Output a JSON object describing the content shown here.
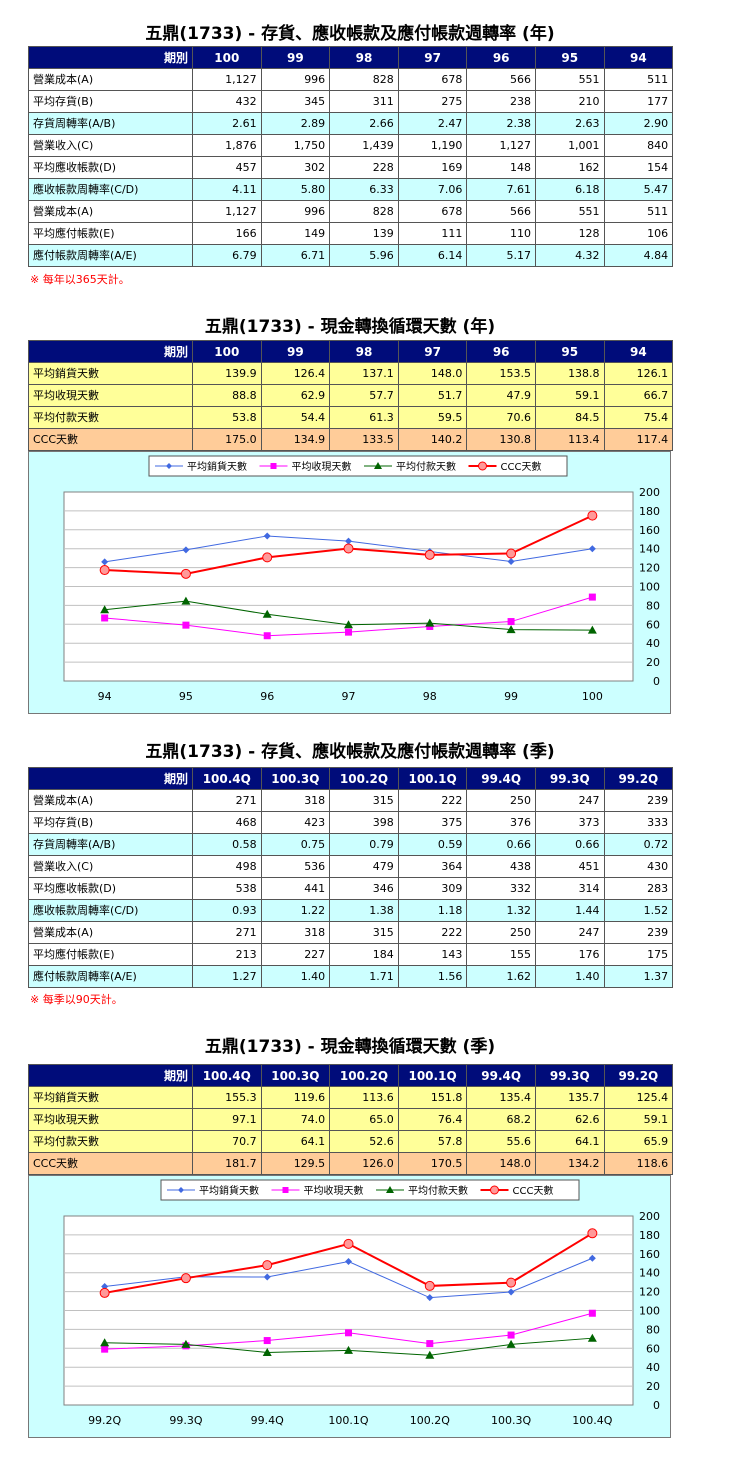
{
  "sections": {
    "annual_turnover": {
      "title": "五鼎(1733) -  存貨、應收帳款及應付帳款週轉率 (年)",
      "header_label": "期別",
      "periods": [
        "100",
        "99",
        "98",
        "97",
        "96",
        "95",
        "94"
      ],
      "rows": [
        {
          "label": "營業成本(A)",
          "values": [
            "1,127",
            "996",
            "828",
            "678",
            "566",
            "551",
            "511"
          ],
          "style": "white"
        },
        {
          "label": "平均存貨(B)",
          "values": [
            "432",
            "345",
            "311",
            "275",
            "238",
            "210",
            "177"
          ],
          "style": "white"
        },
        {
          "label": "存貨周轉率(A/B)",
          "values": [
            "2.61",
            "2.89",
            "2.66",
            "2.47",
            "2.38",
            "2.63",
            "2.90"
          ],
          "style": "cyan"
        },
        {
          "label": "營業收入(C)",
          "values": [
            "1,876",
            "1,750",
            "1,439",
            "1,190",
            "1,127",
            "1,001",
            "840"
          ],
          "style": "white"
        },
        {
          "label": "平均應收帳款(D)",
          "values": [
            "457",
            "302",
            "228",
            "169",
            "148",
            "162",
            "154"
          ],
          "style": "white"
        },
        {
          "label": "應收帳款周轉率(C/D)",
          "values": [
            "4.11",
            "5.80",
            "6.33",
            "7.06",
            "7.61",
            "6.18",
            "5.47"
          ],
          "style": "cyan"
        },
        {
          "label": "營業成本(A)",
          "values": [
            "1,127",
            "996",
            "828",
            "678",
            "566",
            "551",
            "511"
          ],
          "style": "white"
        },
        {
          "label": "平均應付帳款(E)",
          "values": [
            "166",
            "149",
            "139",
            "111",
            "110",
            "128",
            "106"
          ],
          "style": "white"
        },
        {
          "label": "應付帳款周轉率(A/E)",
          "values": [
            "6.79",
            "6.71",
            "5.96",
            "6.14",
            "5.17",
            "4.32",
            "4.84"
          ],
          "style": "cyan"
        }
      ],
      "note": "※ 每年以365天計。"
    },
    "annual_ccc": {
      "title": "五鼎(1733) -  現金轉換循環天數 (年)",
      "header_label": "期別",
      "periods": [
        "100",
        "99",
        "98",
        "97",
        "96",
        "95",
        "94"
      ],
      "rows": [
        {
          "label": "平均銷貨天數",
          "values": [
            "139.9",
            "126.4",
            "137.1",
            "148.0",
            "153.5",
            "138.8",
            "126.1"
          ],
          "style": "yellow"
        },
        {
          "label": "平均收現天數",
          "values": [
            "88.8",
            "62.9",
            "57.7",
            "51.7",
            "47.9",
            "59.1",
            "66.7"
          ],
          "style": "yellow"
        },
        {
          "label": "平均付款天數",
          "values": [
            "53.8",
            "54.4",
            "61.3",
            "59.5",
            "70.6",
            "84.5",
            "75.4"
          ],
          "style": "yellow"
        },
        {
          "label": "CCC天數",
          "values": [
            "175.0",
            "134.9",
            "133.5",
            "140.2",
            "130.8",
            "113.4",
            "117.4"
          ],
          "style": "orange"
        }
      ]
    },
    "quarterly_turnover": {
      "title": "五鼎(1733) -  存貨、應收帳款及應付帳款週轉率 (季)",
      "header_label": "期別",
      "periods": [
        "100.4Q",
        "100.3Q",
        "100.2Q",
        "100.1Q",
        "99.4Q",
        "99.3Q",
        "99.2Q"
      ],
      "rows": [
        {
          "label": "營業成本(A)",
          "values": [
            "271",
            "318",
            "315",
            "222",
            "250",
            "247",
            "239"
          ],
          "style": "white"
        },
        {
          "label": "平均存貨(B)",
          "values": [
            "468",
            "423",
            "398",
            "375",
            "376",
            "373",
            "333"
          ],
          "style": "white"
        },
        {
          "label": "存貨周轉率(A/B)",
          "values": [
            "0.58",
            "0.75",
            "0.79",
            "0.59",
            "0.66",
            "0.66",
            "0.72"
          ],
          "style": "cyan"
        },
        {
          "label": "營業收入(C)",
          "values": [
            "498",
            "536",
            "479",
            "364",
            "438",
            "451",
            "430"
          ],
          "style": "white"
        },
        {
          "label": "平均應收帳款(D)",
          "values": [
            "538",
            "441",
            "346",
            "309",
            "332",
            "314",
            "283"
          ],
          "style": "white"
        },
        {
          "label": "應收帳款周轉率(C/D)",
          "values": [
            "0.93",
            "1.22",
            "1.38",
            "1.18",
            "1.32",
            "1.44",
            "1.52"
          ],
          "style": "cyan"
        },
        {
          "label": "營業成本(A)",
          "values": [
            "271",
            "318",
            "315",
            "222",
            "250",
            "247",
            "239"
          ],
          "style": "white"
        },
        {
          "label": "平均應付帳款(E)",
          "values": [
            "213",
            "227",
            "184",
            "143",
            "155",
            "176",
            "175"
          ],
          "style": "white"
        },
        {
          "label": "應付帳款周轉率(A/E)",
          "values": [
            "1.27",
            "1.40",
            "1.71",
            "1.56",
            "1.62",
            "1.40",
            "1.37"
          ],
          "style": "cyan"
        }
      ],
      "note": "※ 每季以90天計。"
    },
    "quarterly_ccc": {
      "title": "五鼎(1733) -  現金轉換循環天數 (季)",
      "header_label": "期別",
      "periods": [
        "100.4Q",
        "100.3Q",
        "100.2Q",
        "100.1Q",
        "99.4Q",
        "99.3Q",
        "99.2Q"
      ],
      "rows": [
        {
          "label": "平均銷貨天數",
          "values": [
            "155.3",
            "119.6",
            "113.6",
            "151.8",
            "135.4",
            "135.7",
            "125.4"
          ],
          "style": "yellow"
        },
        {
          "label": "平均收現天數",
          "values": [
            "97.1",
            "74.0",
            "65.0",
            "76.4",
            "68.2",
            "62.6",
            "59.1"
          ],
          "style": "yellow"
        },
        {
          "label": "平均付款天數",
          "values": [
            "70.7",
            "64.1",
            "52.6",
            "57.8",
            "55.6",
            "64.1",
            "65.9"
          ],
          "style": "yellow"
        },
        {
          "label": "CCC天數",
          "values": [
            "181.7",
            "129.5",
            "126.0",
            "170.5",
            "148.0",
            "134.2",
            "118.6"
          ],
          "style": "orange"
        }
      ]
    }
  },
  "chart_data": [
    {
      "type": "line",
      "categories": [
        "94",
        "95",
        "96",
        "97",
        "98",
        "99",
        "100"
      ],
      "ylim": [
        0,
        200
      ],
      "yticks": [
        0,
        20,
        40,
        60,
        80,
        100,
        120,
        140,
        160,
        180,
        200
      ],
      "grid": true,
      "legend_position": "top",
      "series": [
        {
          "name": "平均銷貨天數",
          "values": [
            126.1,
            138.8,
            153.5,
            148.0,
            137.1,
            126.4,
            139.9
          ],
          "color": "#4169e1",
          "marker": "diamond"
        },
        {
          "name": "平均收現天數",
          "values": [
            66.7,
            59.1,
            47.9,
            51.7,
            57.7,
            62.9,
            88.8
          ],
          "color": "#ff00ff",
          "marker": "square"
        },
        {
          "name": "平均付款天數",
          "values": [
            75.4,
            84.5,
            70.6,
            59.5,
            61.3,
            54.4,
            53.8
          ],
          "color": "#006400",
          "marker": "triangle"
        },
        {
          "name": "CCC天數",
          "values": [
            117.4,
            113.4,
            130.8,
            140.2,
            133.5,
            134.9,
            175.0
          ],
          "color": "#ff0000",
          "marker": "circle"
        }
      ]
    },
    {
      "type": "line",
      "categories": [
        "99.2Q",
        "99.3Q",
        "99.4Q",
        "100.1Q",
        "100.2Q",
        "100.3Q",
        "100.4Q"
      ],
      "ylim": [
        0,
        200
      ],
      "yticks": [
        0,
        20,
        40,
        60,
        80,
        100,
        120,
        140,
        160,
        180,
        200
      ],
      "grid": true,
      "legend_position": "top",
      "series": [
        {
          "name": "平均銷貨天數",
          "values": [
            125.4,
            135.7,
            135.4,
            151.8,
            113.6,
            119.6,
            155.3
          ],
          "color": "#4169e1",
          "marker": "diamond"
        },
        {
          "name": "平均收現天數",
          "values": [
            59.1,
            62.6,
            68.2,
            76.4,
            65.0,
            74.0,
            97.1
          ],
          "color": "#ff00ff",
          "marker": "square"
        },
        {
          "name": "平均付款天數",
          "values": [
            65.9,
            64.1,
            55.6,
            57.8,
            52.6,
            64.1,
            70.7
          ],
          "color": "#006400",
          "marker": "triangle"
        },
        {
          "name": "CCC天數",
          "values": [
            118.6,
            134.2,
            148.0,
            170.5,
            126.0,
            129.5,
            181.7
          ],
          "color": "#ff0000",
          "marker": "circle"
        }
      ]
    }
  ]
}
